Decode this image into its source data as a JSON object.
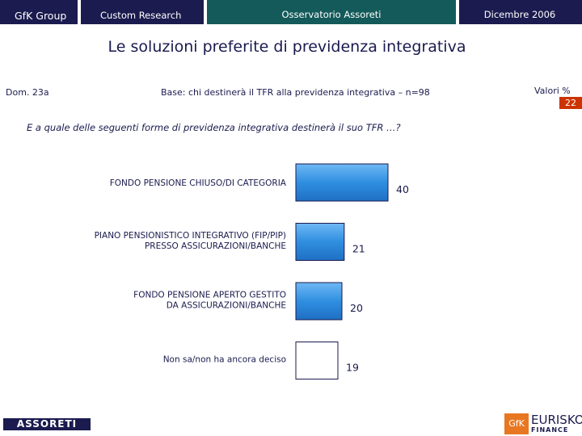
{
  "header": {
    "brand": "GfK Group",
    "section": "Custom Research",
    "survey": "Osservatorio Assoreti",
    "date": "Dicembre 2006"
  },
  "title": "Le soluzioni preferite di previdenza integrativa",
  "question_code": "Dom. 23a",
  "base": "Base: chi destinerà il TFR alla previdenza integrativa – n=98",
  "values_label": "Valori %",
  "page_number": "22",
  "question": "E a quale delle seguenti forme di previdenza integrativa destinerà il suo TFR …?",
  "footer": {
    "left_logo": "ASSORETI",
    "right_logo_mark": "GfK",
    "right_logo_name": "EURISKO",
    "right_logo_sub": "FINANCE"
  },
  "colors": {
    "header_dark": "#1b1b4f",
    "header_teal": "#145a5a",
    "bar_fill": "#2f8fe0",
    "page_badge": "#cc3300"
  },
  "chart_data": {
    "type": "bar",
    "orientation": "horizontal",
    "categories": [
      [
        "FONDO PENSIONE CHIUSO/DI CATEGORIA"
      ],
      [
        "PIANO PENSIONISTICO INTEGRATIVO (FIP/PIP)",
        "PRESSO ASSICURAZIONI/BANCHE"
      ],
      [
        "FONDO PENSIONE APERTO GESTITO",
        "DA ASSICURAZIONI/BANCHE"
      ],
      [
        "Non sa/non ha ancora deciso"
      ]
    ],
    "values": [
      40,
      21,
      20,
      19
    ],
    "fills": [
      "gradient",
      "gradient",
      "gradient",
      "white"
    ],
    "xlim": [
      0,
      40
    ],
    "grid": false,
    "legend": "none"
  }
}
